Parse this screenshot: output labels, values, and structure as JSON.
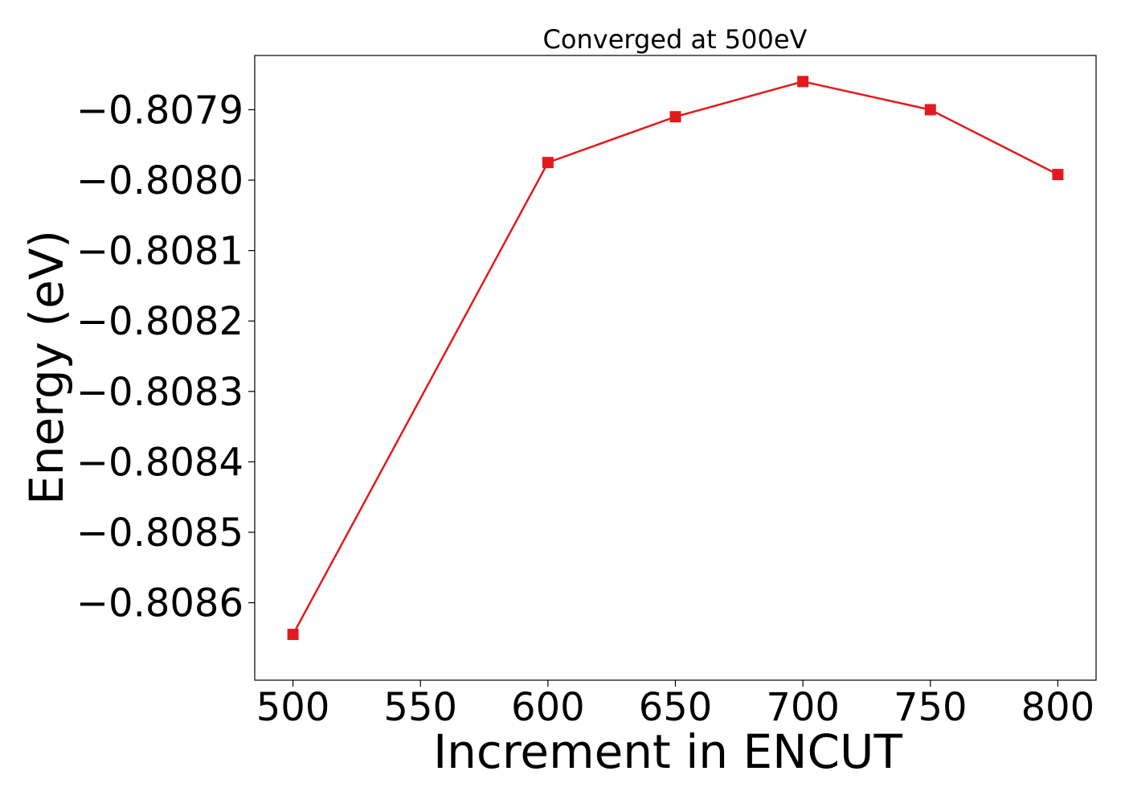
{
  "chart_data": {
    "type": "line",
    "title": "Converged at 500eV",
    "xlabel": "Increment in ENCUT",
    "ylabel": "Energy (eV)",
    "x": [
      500,
      600,
      650,
      700,
      750,
      800
    ],
    "series": [
      {
        "values": [
          -0.808645,
          -0.807975,
          -0.80791,
          -0.80786,
          -0.8079,
          -0.807992
        ],
        "color": "#e31a1c",
        "marker": "square"
      }
    ],
    "xticks": [
      500,
      550,
      600,
      650,
      700,
      750,
      800
    ],
    "xtick_labels": [
      "500",
      "550",
      "600",
      "650",
      "700",
      "750",
      "800"
    ],
    "yticks": [
      -0.8086,
      -0.8085,
      -0.8084,
      -0.8083,
      -0.8082,
      -0.8081,
      -0.808,
      -0.8079
    ],
    "ytick_labels": [
      "−0.8086",
      "−0.8085",
      "−0.8084",
      "−0.8083",
      "−0.8082",
      "−0.8081",
      "−0.8080",
      "−0.8079"
    ],
    "xlim": [
      485,
      815
    ],
    "ylim": [
      -0.80871,
      -0.807823
    ],
    "grid": false,
    "legend": "none"
  }
}
